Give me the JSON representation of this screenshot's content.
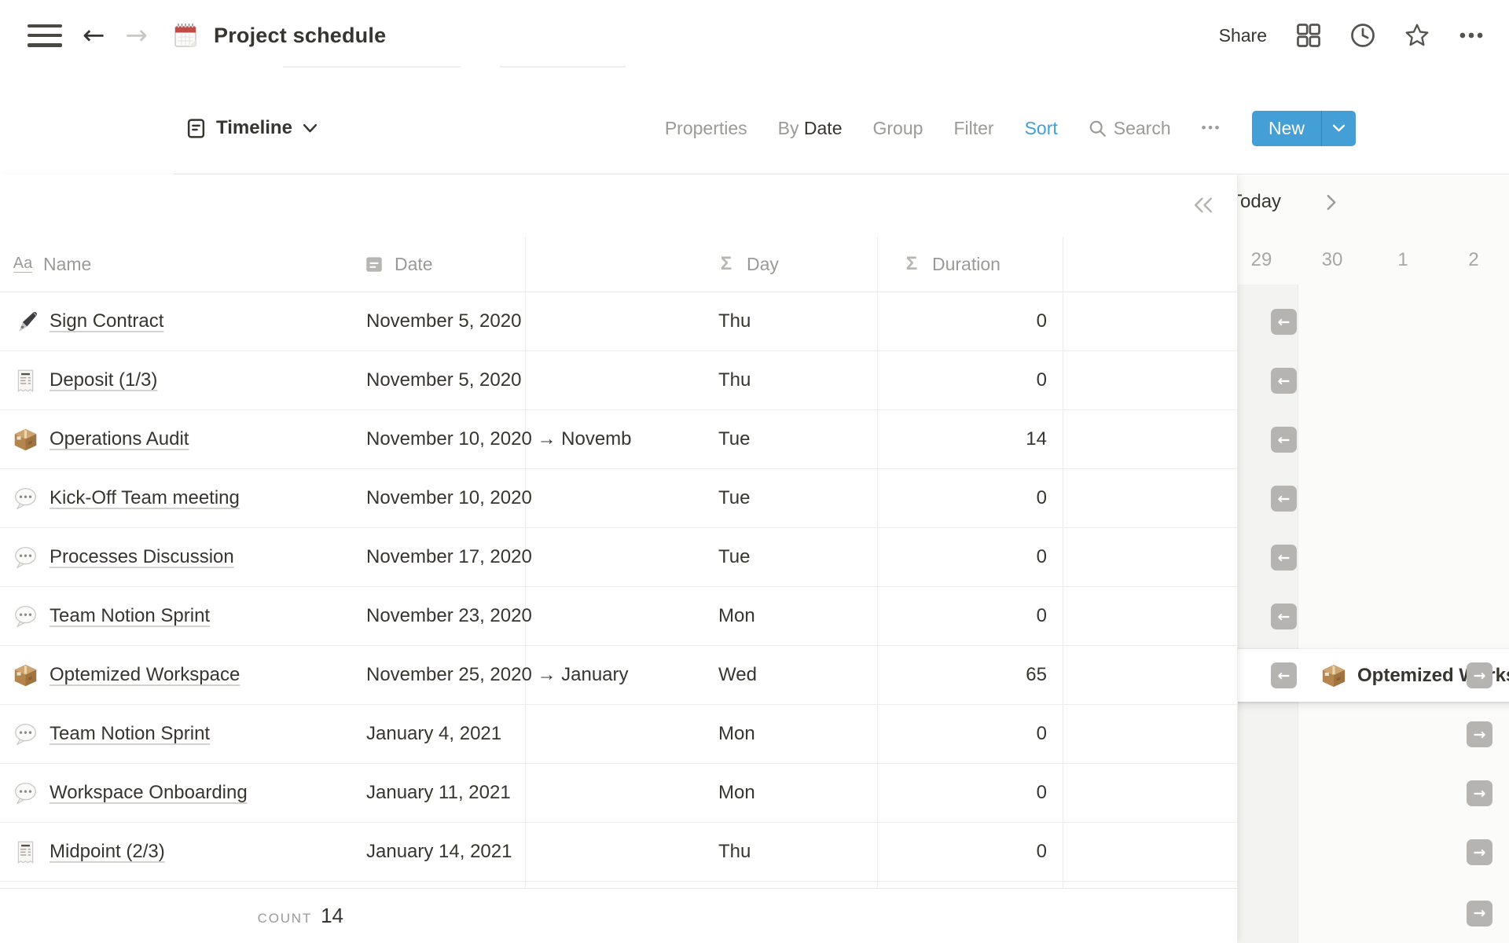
{
  "colors": {
    "accent_blue": "#459fd7",
    "sort_blue": "#3f9fdb",
    "text_dark": "#37352f",
    "text_muted": "#9b9a97",
    "weekend_shade": "#f3f3f1",
    "timeline_button_gray": "#b5b4b1"
  },
  "topbar": {
    "title": "Project schedule",
    "page_icon": "spiral-calendar",
    "share_label": "Share",
    "action_icons": [
      "grid",
      "clock",
      "star",
      "dots"
    ]
  },
  "toolbar": {
    "view": {
      "icon": "doc",
      "label": "Timeline"
    },
    "properties_label": "Properties",
    "by_prefix": "By ",
    "by_value": "Date",
    "group_label": "Group",
    "filter_label": "Filter",
    "sort_label": "Sort",
    "search_label": "Search",
    "more_label": "•••",
    "new_label": "New"
  },
  "timeline": {
    "prev_control_icon": "double-chevron-left",
    "today_label": "Today",
    "next_control_icon": "chevron-right",
    "day_numbers": [
      "29",
      "30",
      "1",
      "2"
    ],
    "bar": {
      "icon": "package",
      "label": "Optemized Workspace"
    },
    "has_extra_right_button": true
  },
  "table": {
    "columns": [
      {
        "icon": "text",
        "label": "Name"
      },
      {
        "icon": "calendar-small",
        "label": "Date"
      },
      {
        "icon": "sigma",
        "label": "Day"
      },
      {
        "icon": "sigma",
        "label": "Duration"
      }
    ],
    "rows": [
      {
        "icon": "pen",
        "name": "Sign Contract",
        "date": "November 5, 2020",
        "day": "Thu",
        "duration": "0",
        "timeline_indicator": "left"
      },
      {
        "icon": "receipt",
        "name": "Deposit (1/3)",
        "date": "November 5, 2020",
        "day": "Thu",
        "duration": "0",
        "timeline_indicator": "left"
      },
      {
        "icon": "package",
        "name": "Operations Audit",
        "date": "November 10, 2020 → Novemb",
        "day": "Tue",
        "duration": "14",
        "timeline_indicator": "left"
      },
      {
        "icon": "speech",
        "name": "Kick-Off Team meeting",
        "date": "November 10, 2020",
        "day": "Tue",
        "duration": "0",
        "timeline_indicator": "left"
      },
      {
        "icon": "speech",
        "name": "Processes Discussion",
        "date": "November 17, 2020",
        "day": "Tue",
        "duration": "0",
        "timeline_indicator": "left"
      },
      {
        "icon": "speech",
        "name": "Team Notion Sprint",
        "date": "November 23, 2020",
        "day": "Mon",
        "duration": "0",
        "timeline_indicator": "left"
      },
      {
        "icon": "package",
        "name": "Optemized Workspace",
        "date": "November 25, 2020 → January",
        "day": "Wed",
        "duration": "65",
        "timeline_indicator": "bar"
      },
      {
        "icon": "speech",
        "name": "Team Notion Sprint",
        "date": "January 4, 2021",
        "day": "Mon",
        "duration": "0",
        "timeline_indicator": "right"
      },
      {
        "icon": "speech",
        "name": "Workspace Onboarding",
        "date": "January 11, 2021",
        "day": "Mon",
        "duration": "0",
        "timeline_indicator": "right"
      },
      {
        "icon": "receipt",
        "name": "Midpoint (2/3)",
        "date": "January 14, 2021",
        "day": "Thu",
        "duration": "0",
        "timeline_indicator": "right"
      }
    ],
    "footer": {
      "count_label": "COUNT",
      "count_value": "14"
    }
  }
}
